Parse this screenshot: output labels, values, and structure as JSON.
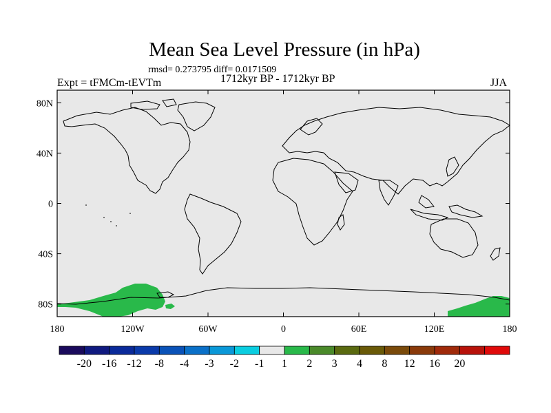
{
  "title": "Mean Sea Level Pressure (in hPa)",
  "stats_line": "rmsd= 0.273795 diff= 0.0171509",
  "period": "1712kyr BP - 1712kyr BP",
  "experiment": "Expt = tFMCm-tEVTm",
  "season": "JJA",
  "map": {
    "projection": "cylindrical-equidistant",
    "lon_range": [
      -180,
      180
    ],
    "lat_range": [
      -90,
      90
    ],
    "x_ticks": [
      {
        "lon": -180,
        "label": "180"
      },
      {
        "lon": -120,
        "label": "120W"
      },
      {
        "lon": -60,
        "label": "60W"
      },
      {
        "lon": 0,
        "label": "0"
      },
      {
        "lon": 60,
        "label": "60E"
      },
      {
        "lon": 120,
        "label": "120E"
      },
      {
        "lon": 180,
        "label": "180"
      }
    ],
    "y_ticks": [
      {
        "lat": 80,
        "label": "80N"
      },
      {
        "lat": 40,
        "label": "40N"
      },
      {
        "lat": 0,
        "label": "0"
      },
      {
        "lat": -40,
        "label": "40S"
      },
      {
        "lat": -80,
        "label": "80S"
      }
    ],
    "background_color": "#e8e8e8",
    "anomaly_regions": [
      {
        "name": "pacific-antarctic-positive",
        "range": "1 to 2",
        "color": "#29b94a"
      },
      {
        "name": "ross-sea-positive",
        "range": "1 to 2",
        "color": "#29b94a"
      }
    ]
  },
  "colorbar": {
    "colors": [
      "#1a0a5c",
      "#101a80",
      "#0a2a9a",
      "#0a3aaa",
      "#0a52b8",
      "#0a70c8",
      "#0a98d8",
      "#0acde0",
      "#e8e8e8",
      "#29b94a",
      "#4a8a2a",
      "#5a6a10",
      "#6a5a08",
      "#7a4a0a",
      "#8a3a0a",
      "#a02a0a",
      "#b8120a",
      "#e00a0a"
    ],
    "labels": [
      "-20",
      "-16",
      "-12",
      "-8",
      "-4",
      "-3",
      "-2",
      "-1",
      "1",
      "2",
      "3",
      "4",
      "8",
      "12",
      "16",
      "20"
    ]
  }
}
